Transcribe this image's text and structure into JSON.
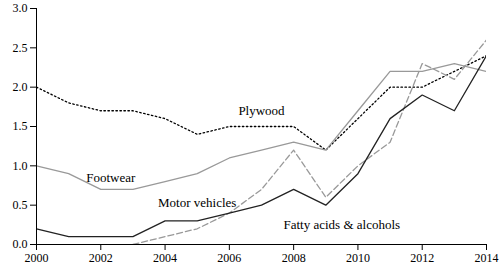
{
  "chart_data": {
    "type": "line",
    "x": [
      2000,
      2001,
      2002,
      2003,
      2004,
      2005,
      2006,
      2007,
      2008,
      2009,
      2010,
      2011,
      2012,
      2013,
      2014
    ],
    "series": [
      {
        "name": "Plywood",
        "color": "#000000",
        "line_style": "dotted",
        "values": [
          2.0,
          1.8,
          1.7,
          1.7,
          1.6,
          1.4,
          1.5,
          1.5,
          1.5,
          1.2,
          1.6,
          2.0,
          2.0,
          2.2,
          2.4
        ]
      },
      {
        "name": "Footwear",
        "color": "#999999",
        "line_style": "solid",
        "values": [
          1.0,
          0.9,
          0.7,
          0.7,
          0.8,
          0.9,
          1.1,
          1.2,
          1.3,
          1.2,
          1.7,
          2.2,
          2.2,
          2.3,
          2.2
        ]
      },
      {
        "name": "Motor vehicles",
        "color": "#999999",
        "line_style": "dashed",
        "values": [
          null,
          null,
          null,
          0.0,
          0.1,
          0.2,
          0.4,
          0.7,
          1.2,
          0.6,
          1.0,
          1.3,
          2.3,
          2.1,
          2.6
        ]
      },
      {
        "name": "Fatty acids & alcohols",
        "color": "#222222",
        "line_style": "solid",
        "values": [
          0.2,
          0.1,
          0.1,
          0.1,
          0.3,
          0.3,
          0.4,
          0.5,
          0.7,
          0.5,
          0.9,
          1.6,
          1.9,
          1.7,
          2.4
        ]
      }
    ],
    "xlim": [
      2000,
      2014
    ],
    "xticks": [
      2000,
      2002,
      2004,
      2006,
      2008,
      2010,
      2012,
      2014
    ],
    "ylim": [
      0,
      3
    ],
    "yticks": [
      {
        "value": 0,
        "label": "0.0"
      },
      {
        "value": 0.5,
        "label": "0.5"
      },
      {
        "value": 1,
        "label": "1.0"
      },
      {
        "value": 1.5,
        "label": "1.5"
      },
      {
        "value": 2,
        "label": "2.0"
      },
      {
        "value": 2.5,
        "label": "2.5"
      },
      {
        "value": 3,
        "label": "3.0"
      }
    ],
    "grid": false
  }
}
